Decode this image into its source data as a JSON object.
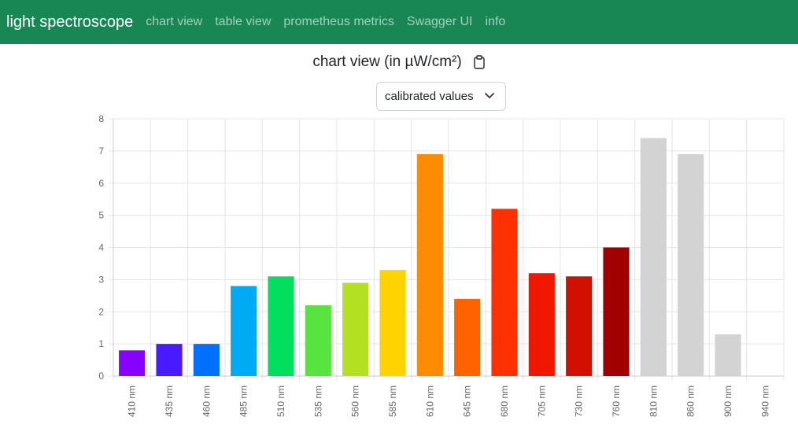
{
  "navbar": {
    "brand": "light spectroscope",
    "links": [
      "chart view",
      "table view",
      "prometheus metrics",
      "Swagger UI",
      "info"
    ]
  },
  "page": {
    "title": "chart view (in µW/cm²)",
    "clipboard_icon": "clipboard-icon"
  },
  "select": {
    "value": "calibrated values",
    "chevron_icon": "chevron-down-icon"
  },
  "colors": {
    "navbar": "#198754",
    "grid": "#e5e5e5"
  },
  "chart_data": {
    "type": "bar",
    "categories": [
      "410 nm",
      "435 nm",
      "460 nm",
      "485 nm",
      "510 nm",
      "535 nm",
      "560 nm",
      "585 nm",
      "610 nm",
      "645 nm",
      "680 nm",
      "705 nm",
      "730 nm",
      "760 nm",
      "810 nm",
      "860 nm",
      "900 nm",
      "940 nm"
    ],
    "values": [
      0.8,
      1.0,
      1.0,
      2.8,
      3.1,
      2.2,
      2.9,
      3.3,
      6.9,
      2.4,
      5.2,
      3.2,
      3.1,
      4.0,
      7.4,
      6.9,
      1.3,
      0
    ],
    "colors": [
      "#8800ff",
      "#4a1aff",
      "#0070ff",
      "#00aaf5",
      "#00df5e",
      "#58e43f",
      "#b3e01f",
      "#ffd300",
      "#ff8c00",
      "#ff6300",
      "#ff3000",
      "#f21800",
      "#d11000",
      "#a00000",
      "#d3d3d3",
      "#d3d3d3",
      "#d3d3d3",
      "#d3d3d3"
    ],
    "ylim": [
      0,
      8
    ],
    "yticks": [
      0,
      1,
      2,
      3,
      4,
      5,
      6,
      7,
      8
    ],
    "grid": true,
    "legend": "none"
  }
}
